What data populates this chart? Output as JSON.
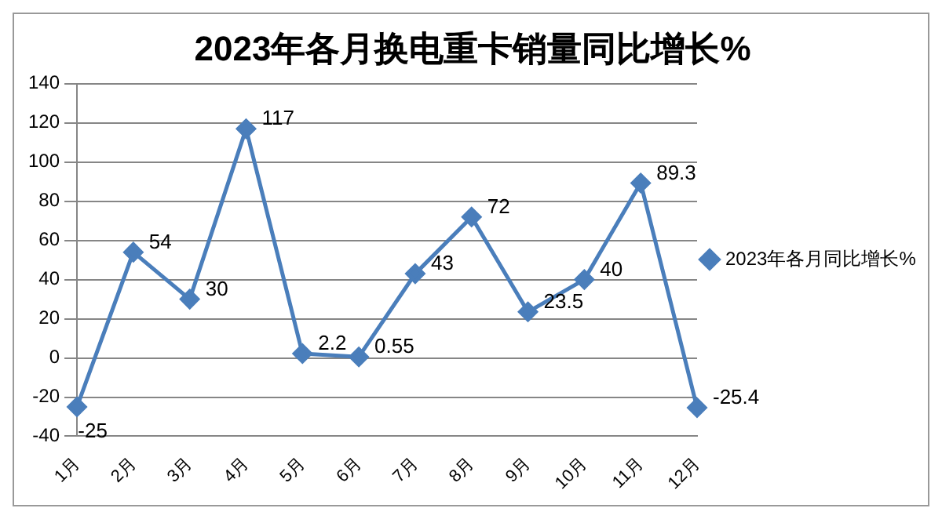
{
  "chart_data": {
    "type": "line",
    "title": "2023年各月换电重卡销量同比增长%",
    "categories": [
      "1月",
      "2月",
      "3月",
      "4月",
      "5月",
      "6月",
      "7月",
      "8月",
      "9月",
      "10月",
      "11月",
      "12月"
    ],
    "series": [
      {
        "name": "2023年各月同比增长%",
        "color": "#4a7ebb",
        "values": [
          -25,
          54,
          30,
          117,
          2.2,
          0.55,
          43,
          72,
          23.5,
          40,
          89.3,
          -25.4
        ]
      }
    ],
    "ylim": [
      -40,
      140
    ],
    "yticks": [
      -40,
      -20,
      0,
      20,
      40,
      60,
      80,
      100,
      120,
      140
    ],
    "grid": "y",
    "legend": "right",
    "marker": "diamond",
    "line_style": "solid",
    "data_labels": true
  }
}
